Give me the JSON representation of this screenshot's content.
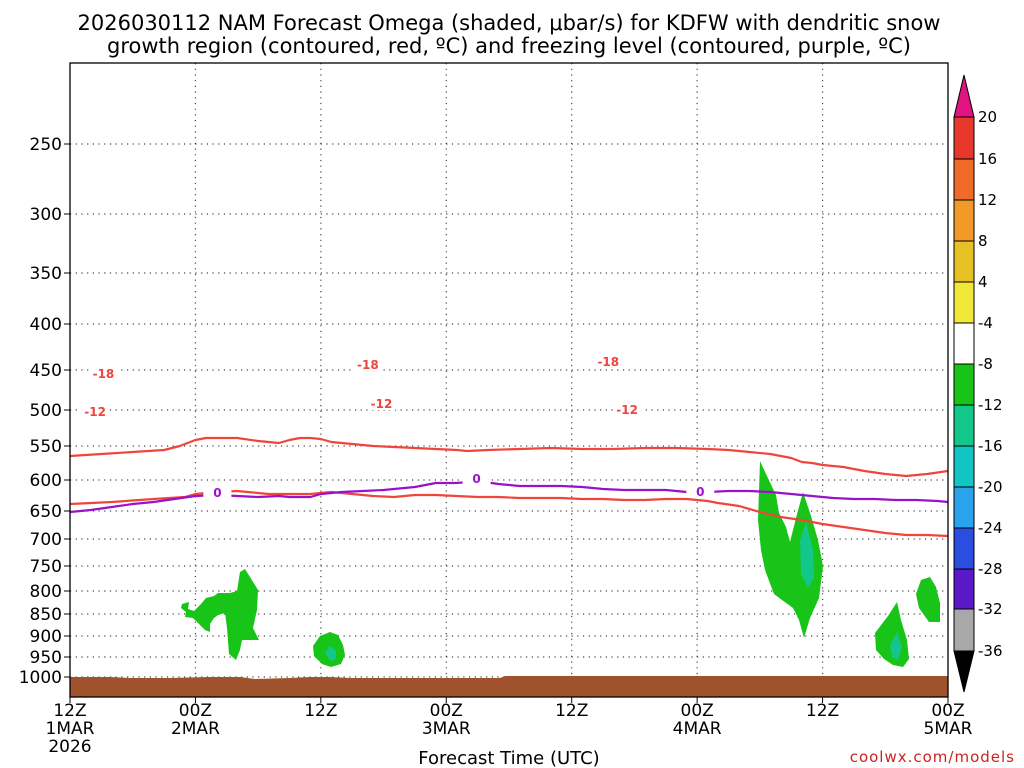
{
  "chart_data": {
    "type": "heatmap",
    "title_lines": [
      "2026030112 NAM Forecast Omega (shaded, μbar/s) for KDFW with dendritic snow",
      "growth region (contoured, red, ºC) and freezing level (contoured, purple, ºC)"
    ],
    "xlabel": "Forecast Time (UTC)",
    "credit": "coolwx.com/models",
    "x_range_hours": [
      0,
      84
    ],
    "x_ticks": [
      {
        "h": 0,
        "lines": [
          "12Z",
          "1MAR",
          "2026"
        ]
      },
      {
        "h": 12,
        "lines": [
          "00Z",
          "2MAR"
        ]
      },
      {
        "h": 24,
        "lines": [
          "12Z"
        ]
      },
      {
        "h": 36,
        "lines": [
          "00Z",
          "3MAR"
        ]
      },
      {
        "h": 48,
        "lines": [
          "12Z"
        ]
      },
      {
        "h": 60,
        "lines": [
          "00Z",
          "4MAR"
        ]
      },
      {
        "h": 72,
        "lines": [
          "12Z"
        ]
      },
      {
        "h": 84,
        "lines": [
          "00Z",
          "5MAR"
        ]
      }
    ],
    "y_ticks": [
      {
        "p": 250,
        "y": 144
      },
      {
        "p": 300,
        "y": 214
      },
      {
        "p": 350,
        "y": 273
      },
      {
        "p": 400,
        "y": 324
      },
      {
        "p": 450,
        "y": 370
      },
      {
        "p": 500,
        "y": 410
      },
      {
        "p": 550,
        "y": 446
      },
      {
        "p": 600,
        "y": 480
      },
      {
        "p": 650,
        "y": 511
      },
      {
        "p": 700,
        "y": 539
      },
      {
        "p": 750,
        "y": 566
      },
      {
        "p": 800,
        "y": 591
      },
      {
        "p": 850,
        "y": 614
      },
      {
        "p": 900,
        "y": 636
      },
      {
        "p": 950,
        "y": 657
      },
      {
        "p": 1000,
        "y": 677
      }
    ],
    "colorbar": {
      "labels": [
        "20",
        "16",
        "12",
        "8",
        "4",
        "-4",
        "-8",
        "-12",
        "-16",
        "-20",
        "-24",
        "-28",
        "-32",
        "-36"
      ],
      "colors": [
        "#e8372d",
        "#f06a2a",
        "#f29a28",
        "#e7c124",
        "#f2e83a",
        "#ffffff",
        "#18c418",
        "#13c78a",
        "#11c5c5",
        "#2aa2ec",
        "#2a4ee0",
        "#5a18c8",
        "#9c12c8",
        "#a8a8a8"
      ],
      "top_color": "#e01380",
      "bottom_color": "#000000"
    },
    "contours": {
      "minus18": {
        "label": "-18",
        "color": "#f0443c",
        "points": [
          [
            0,
            456
          ],
          [
            3,
            454
          ],
          [
            6,
            452
          ],
          [
            9,
            450
          ],
          [
            10.5,
            446
          ],
          [
            12,
            440
          ],
          [
            13,
            438
          ],
          [
            14,
            438
          ],
          [
            16,
            438
          ],
          [
            18,
            441
          ],
          [
            20,
            443
          ],
          [
            21,
            440
          ],
          [
            22,
            438
          ],
          [
            23,
            438
          ],
          [
            24,
            439
          ],
          [
            25,
            442
          ],
          [
            27,
            444
          ],
          [
            29,
            446
          ],
          [
            31,
            447
          ],
          [
            33,
            448
          ],
          [
            35,
            449
          ],
          [
            37,
            450
          ],
          [
            38,
            451
          ],
          [
            40,
            450
          ],
          [
            43,
            449
          ],
          [
            46,
            448
          ],
          [
            49,
            449
          ],
          [
            52,
            449
          ],
          [
            55,
            448
          ],
          [
            58,
            448
          ],
          [
            61,
            449
          ],
          [
            63,
            450
          ],
          [
            65,
            452
          ],
          [
            67,
            454
          ],
          [
            69,
            458
          ],
          [
            70,
            462
          ],
          [
            71,
            463
          ],
          [
            72,
            465
          ],
          [
            74,
            467
          ],
          [
            75,
            469
          ],
          [
            76,
            471
          ],
          [
            78,
            474
          ],
          [
            80,
            476
          ],
          [
            82,
            474
          ],
          [
            84,
            471
          ]
        ],
        "labels_at": [
          [
            3.2,
            375
          ],
          [
            28.5,
            366
          ],
          [
            51.5,
            363
          ]
        ]
      },
      "minus12": {
        "label": "-12",
        "color": "#f0443c",
        "points": [
          [
            0,
            504
          ],
          [
            4,
            502
          ],
          [
            8,
            499
          ],
          [
            11,
            497
          ],
          [
            12,
            494
          ],
          [
            14,
            492
          ],
          [
            16,
            491
          ],
          [
            17,
            492
          ],
          [
            19,
            494
          ],
          [
            21,
            494
          ],
          [
            23,
            494
          ],
          [
            25,
            492
          ],
          [
            27,
            494
          ],
          [
            29,
            496
          ],
          [
            31,
            497
          ],
          [
            33,
            495
          ],
          [
            35,
            495
          ],
          [
            37,
            496
          ],
          [
            39,
            497
          ],
          [
            41,
            497
          ],
          [
            43,
            498
          ],
          [
            45,
            498
          ],
          [
            47,
            498
          ],
          [
            49,
            499
          ],
          [
            51,
            499
          ],
          [
            53,
            500
          ],
          [
            55,
            500
          ],
          [
            57,
            499
          ],
          [
            59,
            499
          ],
          [
            61,
            501
          ],
          [
            62,
            503
          ],
          [
            64,
            506
          ],
          [
            66,
            512
          ],
          [
            68,
            517
          ],
          [
            70,
            520
          ],
          [
            72,
            524
          ],
          [
            74,
            527
          ],
          [
            76,
            530
          ],
          [
            78,
            533
          ],
          [
            80,
            535
          ],
          [
            82,
            535
          ],
          [
            84,
            536
          ]
        ],
        "labels_at": [
          [
            2.4,
            413
          ],
          [
            29.8,
            405
          ],
          [
            53.3,
            411
          ]
        ]
      },
      "zero": {
        "label": "0",
        "color": "#9a12c8",
        "points": [
          [
            0,
            512
          ],
          [
            2,
            510
          ],
          [
            4,
            507
          ],
          [
            6,
            504
          ],
          [
            8,
            502
          ],
          [
            10,
            499
          ],
          [
            12,
            496
          ],
          [
            14,
            495
          ],
          [
            16,
            496
          ],
          [
            18,
            497
          ],
          [
            20,
            496
          ],
          [
            21,
            497
          ],
          [
            23,
            497
          ],
          [
            24,
            494
          ],
          [
            26,
            492
          ],
          [
            28,
            491
          ],
          [
            30,
            490
          ],
          [
            33,
            487
          ],
          [
            35,
            483
          ],
          [
            37,
            483
          ],
          [
            39,
            481
          ],
          [
            41,
            484
          ],
          [
            43,
            486
          ],
          [
            45,
            486
          ],
          [
            47,
            486
          ],
          [
            49,
            487
          ],
          [
            51,
            489
          ],
          [
            53,
            490
          ],
          [
            55,
            490
          ],
          [
            57,
            490
          ],
          [
            59,
            492
          ],
          [
            61,
            492
          ],
          [
            63,
            491
          ],
          [
            65,
            491
          ],
          [
            67,
            492
          ],
          [
            69,
            494
          ],
          [
            71,
            496
          ],
          [
            73,
            498
          ],
          [
            75,
            499
          ],
          [
            77,
            499
          ],
          [
            79,
            500
          ],
          [
            81,
            500
          ],
          [
            83,
            501
          ],
          [
            84,
            502
          ]
        ],
        "labels_at": [
          [
            14.1,
            494
          ],
          [
            38.9,
            480
          ],
          [
            60.3,
            493
          ]
        ]
      }
    }
  }
}
